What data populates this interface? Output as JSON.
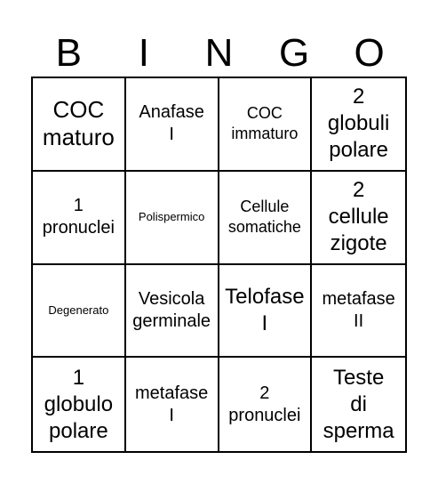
{
  "header": {
    "letters": [
      "B",
      "I",
      "N",
      "G",
      "O"
    ]
  },
  "board": {
    "cells": [
      "COC\nmaturo",
      "Anafase\nI",
      "COC\nimmaturo",
      "2\nglobuli\npolare",
      "1\npronuclei",
      "Polispermico",
      "Cellule\nsomatiche",
      "2\ncellule\nzigote",
      "Degenerato",
      "Vesicola\ngerminale",
      "Telofase\nI",
      "metafase\nII",
      "1\nglobulo\npolare",
      "metafase\nI",
      "2\npronuclei",
      "Teste\ndi\nsperma"
    ]
  }
}
